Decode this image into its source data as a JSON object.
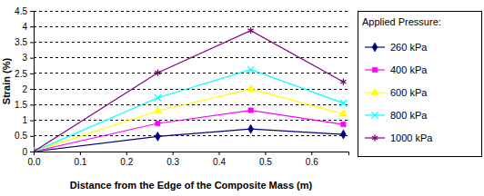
{
  "chart_data": {
    "type": "line",
    "x_label": "Distance from the Edge of the Composite Mass (m)",
    "y_label": "Strain (%)",
    "legend_title": "Applied Pressure:",
    "legend": "right",
    "grid": true,
    "x": [
      0,
      0.268,
      0.469,
      0.669
    ],
    "xlim": [
      0,
      0.68
    ],
    "xticks": [
      {
        "value": 0,
        "label": "0.0"
      },
      {
        "value": 0.1,
        "label": "0.1"
      },
      {
        "value": 0.2,
        "label": "0.2"
      },
      {
        "value": 0.3,
        "label": "0.3"
      },
      {
        "value": 0.4,
        "label": "0.4"
      },
      {
        "value": 0.5,
        "label": "0.5"
      },
      {
        "value": 0.6,
        "label": "0.6"
      }
    ],
    "ylim": [
      0,
      4.5
    ],
    "yticks": [
      0,
      0.5,
      1,
      1.5,
      2,
      2.5,
      3,
      3.5,
      4,
      4.5
    ],
    "series": [
      {
        "name": "260 kPa",
        "color": "#000080",
        "marker": "diamond",
        "values": [
          0,
          0.48,
          0.72,
          0.55
        ]
      },
      {
        "name": "400 kPa",
        "color": "#ff00ff",
        "marker": "square",
        "values": [
          0,
          0.9,
          1.32,
          0.87
        ]
      },
      {
        "name": "600 kPa",
        "color": "#ffff00",
        "marker": "triangle",
        "values": [
          0,
          1.3,
          2.0,
          1.2
        ]
      },
      {
        "name": "800 kPa",
        "color": "#00ffff",
        "marker": "x",
        "values": [
          0,
          1.72,
          2.62,
          1.55
        ]
      },
      {
        "name": "1000 kPa",
        "color": "#800080",
        "marker": "star",
        "values": [
          0,
          2.52,
          3.87,
          2.23
        ]
      }
    ]
  }
}
